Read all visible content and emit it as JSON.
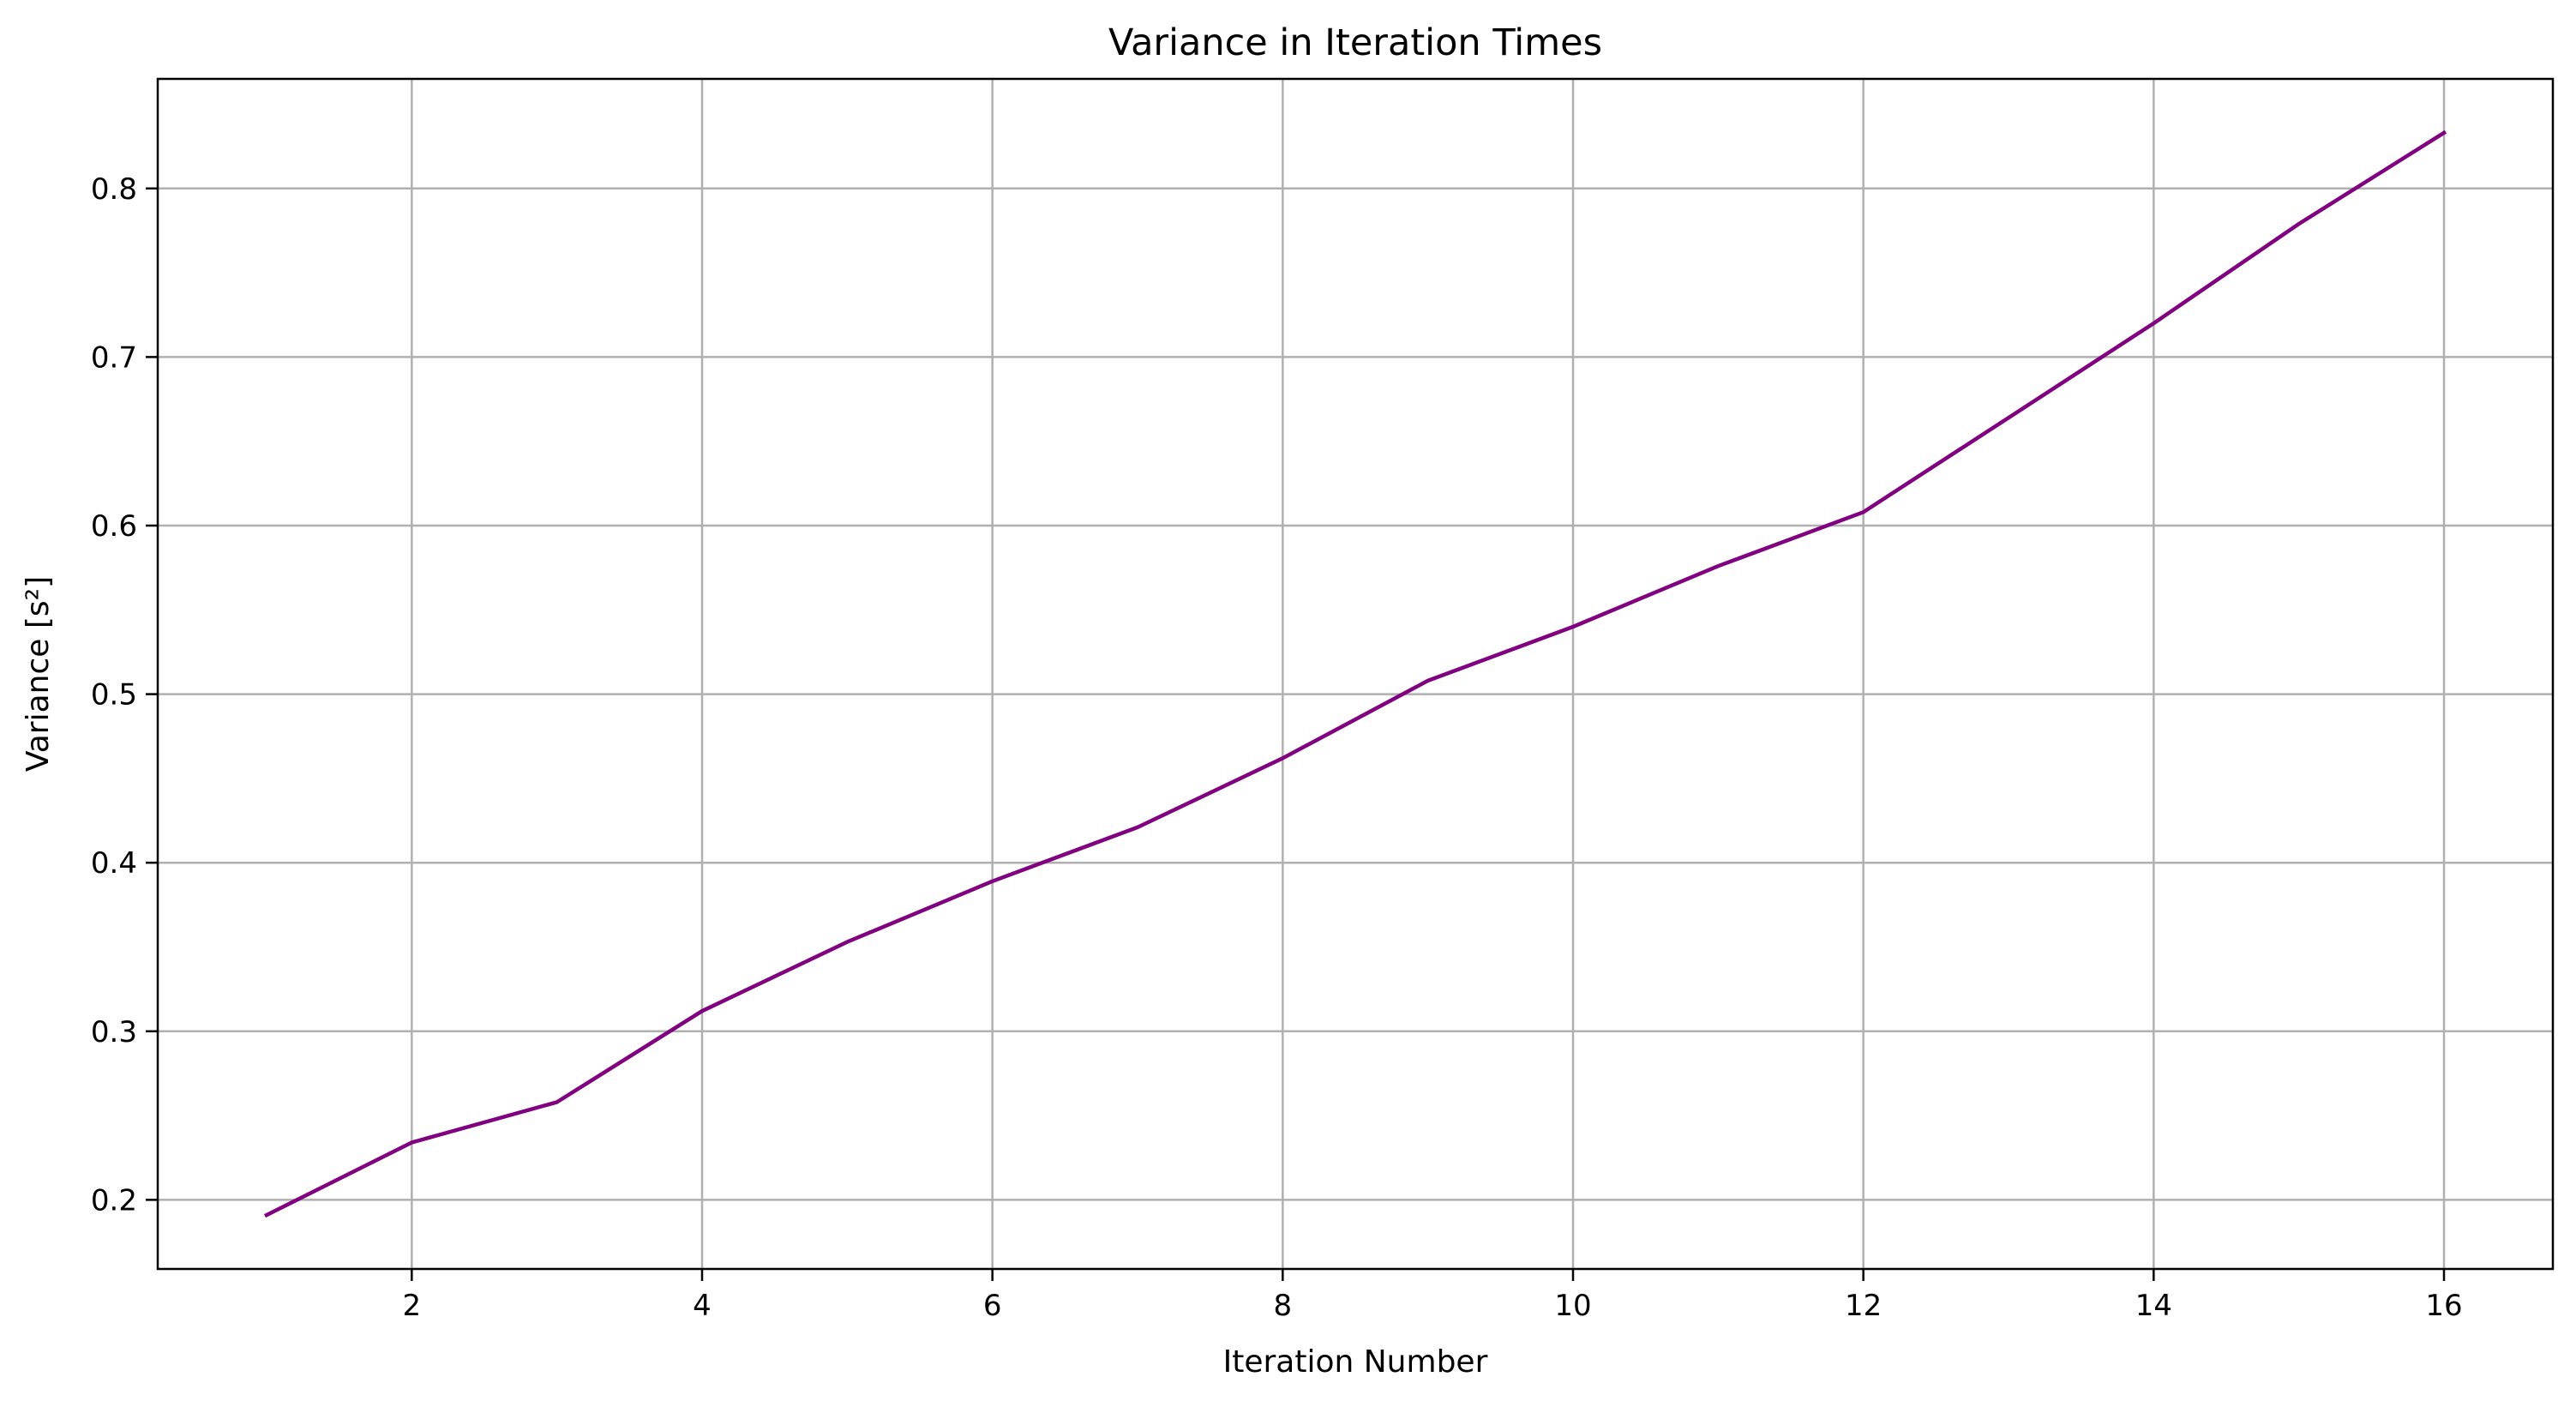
{
  "chart_data": {
    "type": "line",
    "title": "Variance in Iteration Times",
    "xlabel": "Iteration Number",
    "ylabel": "Variance [s²]",
    "xlim": [
      0.25,
      16.75
    ],
    "ylim": [
      0.159,
      0.865
    ],
    "xticks": [
      2,
      4,
      6,
      8,
      10,
      12,
      14,
      16
    ],
    "yticks": [
      0.2,
      0.3,
      0.4,
      0.5,
      0.6,
      0.7,
      0.8
    ],
    "grid": true,
    "legend": "none",
    "series": [
      {
        "color": "#800080",
        "x": [
          1,
          2,
          3,
          4,
          5,
          6,
          7,
          8,
          9,
          10,
          11,
          12,
          13,
          14,
          15,
          16
        ],
        "y": [
          0.191,
          0.234,
          0.258,
          0.312,
          0.353,
          0.389,
          0.421,
          0.462,
          0.508,
          0.54,
          0.576,
          0.608,
          0.664,
          0.72,
          0.779,
          0.833
        ]
      }
    ],
    "colors": {
      "grid": "#b0b0b0",
      "axes": "#000000",
      "line": "#800080"
    }
  }
}
